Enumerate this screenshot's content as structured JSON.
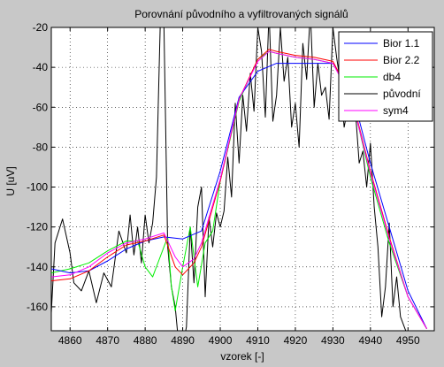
{
  "chart_data": {
    "type": "line",
    "title": "Porovnání původního a vyfiltrovaných signálů",
    "xlabel": "vzorek [-]",
    "ylabel": "U [uV]",
    "xlim": [
      4855,
      4957
    ],
    "ylim": [
      -172,
      -20
    ],
    "xticks": [
      4860,
      4870,
      4880,
      4890,
      4900,
      4910,
      4920,
      4930,
      4940,
      4950
    ],
    "yticks": [
      -20,
      -40,
      -60,
      -80,
      -100,
      -120,
      -140,
      -160
    ],
    "grid": true,
    "legend_position": "top-right",
    "series": [
      {
        "name": "Bior 1.1",
        "color": "#0000ff",
        "x": [
          4855,
          4860,
          4865,
          4870,
          4875,
          4880,
          4885,
          4890,
          4895,
          4900,
          4905,
          4910,
          4915,
          4920,
          4925,
          4930,
          4935,
          4940,
          4945,
          4950,
          4955
        ],
        "y": [
          -141,
          -143,
          -142,
          -137,
          -131,
          -127,
          -125,
          -126,
          -122,
          -92,
          -55,
          -42,
          -38,
          -38,
          -38,
          -38,
          -52,
          -88,
          -120,
          -152,
          -171
        ]
      },
      {
        "name": "Bior 2.2",
        "color": "#ff0000",
        "x": [
          4855,
          4860,
          4865,
          4870,
          4875,
          4880,
          4885,
          4888,
          4890,
          4893,
          4895,
          4900,
          4905,
          4910,
          4913,
          4915,
          4920,
          4925,
          4930,
          4935,
          4940,
          4945,
          4950,
          4955
        ],
        "y": [
          -147,
          -146,
          -142,
          -135,
          -129,
          -127,
          -124,
          -140,
          -144,
          -138,
          -130,
          -97,
          -56,
          -36,
          -31,
          -32,
          -34,
          -35,
          -37,
          -55,
          -92,
          -125,
          -155,
          -171
        ]
      },
      {
        "name": "db4",
        "color": "#00ee00",
        "x": [
          4855,
          4860,
          4865,
          4870,
          4875,
          4878,
          4880,
          4882,
          4884,
          4886,
          4887,
          4888,
          4890,
          4892,
          4894,
          4896,
          4898,
          4900,
          4905,
          4910,
          4913,
          4915,
          4920,
          4925,
          4930,
          4935,
          4940,
          4945,
          4950,
          4955
        ],
        "y": [
          -143,
          -141,
          -138,
          -132,
          -127,
          -127,
          -140,
          -145,
          -135,
          -125,
          -150,
          -162,
          -140,
          -120,
          -150,
          -128,
          -122,
          -97,
          -57,
          -36,
          -32,
          -33,
          -35,
          -36,
          -38,
          -55,
          -95,
          -128,
          -155,
          -171
        ]
      },
      {
        "name": "původní",
        "color": "#000000",
        "x": [
          4855,
          4856,
          4858,
          4860,
          4861,
          4863,
          4865,
          4867,
          4869,
          4871,
          4873,
          4875,
          4876,
          4877,
          4878,
          4879,
          4880,
          4881,
          4882,
          4883,
          4884,
          4885,
          4886,
          4887,
          4888,
          4889,
          4890,
          4891,
          4892,
          4893,
          4894,
          4895,
          4896,
          4897,
          4898,
          4899,
          4900,
          4901,
          4902,
          4903,
          4904,
          4905,
          4906,
          4907,
          4908,
          4909,
          4910,
          4911,
          4912,
          4913,
          4914,
          4915,
          4916,
          4917,
          4918,
          4919,
          4920,
          4921,
          4922,
          4923,
          4924,
          4925,
          4926,
          4927,
          4928,
          4929,
          4930,
          4931,
          4932,
          4933,
          4934,
          4935,
          4936,
          4937,
          4938,
          4939,
          4940,
          4941,
          4942,
          4943,
          4944,
          4945,
          4946,
          4947,
          4948,
          4950,
          4955
        ],
        "y": [
          -163,
          -128,
          -116,
          -133,
          -148,
          -152,
          -142,
          -158,
          -143,
          -150,
          -122,
          -133,
          -114,
          -134,
          -120,
          -138,
          -114,
          -128,
          -118,
          -95,
          -20,
          -20,
          -130,
          -150,
          -160,
          -180,
          -180,
          -170,
          -120,
          -148,
          -110,
          -100,
          -155,
          -115,
          -130,
          -113,
          -120,
          -112,
          -85,
          -105,
          -58,
          -88,
          -54,
          -72,
          -43,
          -62,
          -20,
          -32,
          -65,
          -12,
          -67,
          -54,
          -20,
          -47,
          -35,
          -70,
          -58,
          -80,
          -28,
          -46,
          -12,
          -60,
          -38,
          -54,
          -50,
          -66,
          -20,
          -35,
          -48,
          -70,
          -60,
          -45,
          -62,
          -88,
          -82,
          -100,
          -78,
          -110,
          -130,
          -165,
          -150,
          -118,
          -160,
          -145,
          -165,
          -175,
          -180
        ]
      },
      {
        "name": "sym4",
        "color": "#ff00ff",
        "x": [
          4855,
          4860,
          4865,
          4870,
          4875,
          4880,
          4885,
          4888,
          4890,
          4893,
          4895,
          4900,
          4905,
          4910,
          4913,
          4915,
          4920,
          4925,
          4930,
          4935,
          4940,
          4945,
          4950,
          4955
        ],
        "y": [
          -145,
          -144,
          -140,
          -133,
          -128,
          -126,
          -123,
          -135,
          -140,
          -136,
          -128,
          -96,
          -56,
          -37,
          -32,
          -33,
          -35,
          -36,
          -38,
          -56,
          -93,
          -126,
          -155,
          -171
        ]
      }
    ]
  }
}
